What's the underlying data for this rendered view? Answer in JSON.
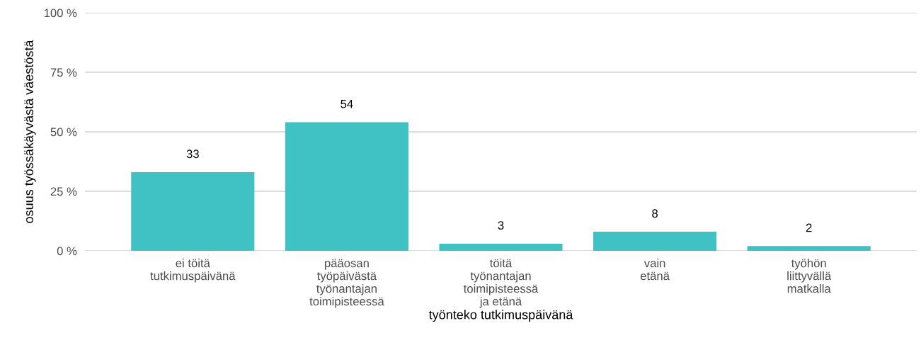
{
  "chart_data": {
    "type": "bar",
    "xlabel": "työnteko tutkimuspäivänä",
    "ylabel": "osuus työssäkäyvästä väestöstä",
    "categories": [
      "ei töitä\ntutkimuspäivänä",
      "pääosan\ntyöpäivästä\ntyönantajan\ntoimipisteessä",
      "töitä\ntyönantajan\ntoimipisteessä\nja etänä",
      "vain\netänä",
      "työhön\nliittyvällä\nmatkalla"
    ],
    "values": [
      33,
      54,
      3,
      8,
      2
    ],
    "color": "#40c2c4",
    "ylim": [
      0,
      100
    ],
    "yticks": [
      {
        "value": 0,
        "label": "0 %"
      },
      {
        "value": 25,
        "label": "25 %"
      },
      {
        "value": 50,
        "label": "50 %"
      },
      {
        "value": 75,
        "label": "75 %"
      },
      {
        "value": 100,
        "label": "100 %"
      }
    ],
    "grid": "y",
    "data_labels": true
  }
}
